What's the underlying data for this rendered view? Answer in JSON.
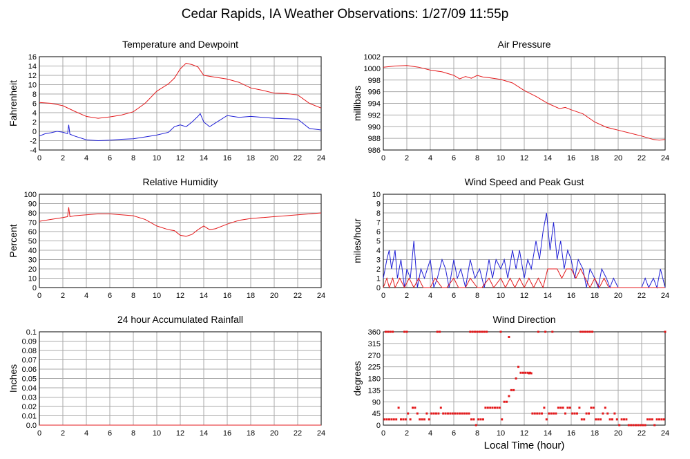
{
  "page_title": "Cedar Rapids, IA Weather Observations: 1/27/09 11:55p",
  "common_xlabel": "Local Time (hour)",
  "colors": {
    "red": "#e41a1c",
    "blue": "#1f1fd6",
    "grid": "#aaaaaa"
  },
  "chart_data": [
    {
      "id": "temp",
      "type": "line",
      "title": "Temperature and Dewpoint",
      "ylabel": "Fahrenheit",
      "xlim": [
        0,
        24
      ],
      "xticks": [
        "0",
        "2",
        "4",
        "6",
        "8",
        "10",
        "12",
        "14",
        "16",
        "18",
        "20",
        "22",
        "24"
      ],
      "ylim": [
        -4,
        16
      ],
      "yticks": [
        "-4",
        "-2",
        "0",
        "2",
        "4",
        "6",
        "8",
        "10",
        "12",
        "14",
        "16"
      ],
      "grid": true,
      "series": [
        {
          "color": "#e41a1c",
          "x": [
            0,
            1,
            2,
            3,
            4,
            5,
            6,
            7,
            8,
            9,
            10,
            11,
            11.5,
            12,
            12.5,
            13,
            13.5,
            14,
            15,
            16,
            17,
            18,
            19,
            20,
            21,
            22,
            23,
            24
          ],
          "y": [
            6.2,
            6.0,
            5.5,
            4.3,
            3.2,
            2.8,
            3.1,
            3.5,
            4.2,
            6.0,
            8.6,
            10.2,
            11.4,
            13.4,
            14.6,
            14.3,
            13.8,
            12.0,
            11.6,
            11.2,
            10.5,
            9.3,
            8.8,
            8.2,
            8.1,
            7.8,
            6.0,
            5.0
          ]
        },
        {
          "color": "#1f1fd6",
          "x": [
            0,
            0.5,
            1,
            1.5,
            2,
            2.4,
            2.5,
            2.6,
            3,
            4,
            5,
            6,
            7,
            8,
            9,
            10,
            11,
            11.5,
            12,
            12.5,
            13,
            13.5,
            13.7,
            14,
            14.5,
            15,
            16,
            17,
            18,
            19,
            20,
            21,
            22,
            23,
            24
          ],
          "y": [
            -1.0,
            -0.5,
            -0.3,
            0.0,
            -0.2,
            -0.5,
            1.4,
            -0.6,
            -1.0,
            -1.8,
            -2.0,
            -1.9,
            -1.7,
            -1.6,
            -1.2,
            -0.8,
            -0.2,
            1.0,
            1.4,
            1.0,
            2.0,
            3.2,
            3.8,
            2.0,
            1.0,
            1.8,
            3.4,
            3.0,
            3.2,
            3.0,
            2.8,
            2.7,
            2.6,
            0.6,
            0.3
          ]
        }
      ]
    },
    {
      "id": "pressure",
      "type": "line",
      "title": "Air Pressure",
      "ylabel": "millibars",
      "xlim": [
        0,
        24
      ],
      "xticks": [
        "0",
        "2",
        "4",
        "6",
        "8",
        "10",
        "12",
        "14",
        "16",
        "18",
        "20",
        "22",
        "24"
      ],
      "ylim": [
        986,
        1002
      ],
      "yticks": [
        "986",
        "988",
        "990",
        "992",
        "994",
        "996",
        "998",
        "1000",
        "1002"
      ],
      "grid": true,
      "series": [
        {
          "color": "#e41a1c",
          "x": [
            0,
            1,
            2,
            3,
            4,
            5,
            6,
            6.5,
            7,
            7.5,
            8,
            8.5,
            9,
            10,
            11,
            12,
            13,
            14,
            15,
            15.5,
            16,
            17,
            18,
            19,
            20,
            21,
            22,
            23,
            23.5,
            24
          ],
          "y": [
            1000.2,
            1000.4,
            1000.5,
            1000.2,
            999.7,
            999.4,
            998.8,
            998.2,
            998.6,
            998.3,
            998.8,
            998.5,
            998.4,
            998.1,
            997.5,
            996.2,
            995.2,
            994.0,
            993.1,
            993.3,
            992.9,
            992.2,
            990.8,
            989.9,
            989.4,
            988.9,
            988.4,
            987.8,
            987.7,
            987.8
          ]
        }
      ]
    },
    {
      "id": "humidity",
      "type": "line",
      "title": "Relative Humidity",
      "ylabel": "Percent",
      "xlim": [
        0,
        24
      ],
      "xticks": [
        "0",
        "2",
        "4",
        "6",
        "8",
        "10",
        "12",
        "14",
        "16",
        "18",
        "20",
        "22",
        "24"
      ],
      "ylim": [
        0,
        100
      ],
      "yticks": [
        "0",
        "10",
        "20",
        "30",
        "40",
        "50",
        "60",
        "70",
        "80",
        "90",
        "100"
      ],
      "grid": true,
      "series": [
        {
          "color": "#e41a1c",
          "x": [
            0,
            1,
            2,
            2.4,
            2.5,
            2.6,
            3,
            4,
            5,
            6,
            7,
            8,
            9,
            10,
            11,
            11.5,
            12,
            12.5,
            13,
            13.5,
            14,
            14.5,
            15,
            16,
            17,
            18,
            19,
            20,
            21,
            22,
            23,
            24
          ],
          "y": [
            71,
            73,
            75,
            76,
            86,
            76,
            77,
            78,
            79,
            79,
            78,
            77,
            73,
            66,
            62,
            61,
            56,
            55,
            57,
            62,
            66,
            62,
            63,
            68,
            72,
            74,
            75,
            76,
            77,
            78,
            79,
            80
          ]
        }
      ]
    },
    {
      "id": "wind",
      "type": "line",
      "title": "Wind Speed and Peak Gust",
      "ylabel": "miles/hour",
      "xlim": [
        0,
        24
      ],
      "xticks": [
        "0",
        "2",
        "4",
        "6",
        "8",
        "10",
        "12",
        "14",
        "16",
        "18",
        "20",
        "22",
        "24"
      ],
      "ylim": [
        0,
        10
      ],
      "yticks": [
        "0",
        "1",
        "2",
        "3",
        "4",
        "5",
        "6",
        "7",
        "8",
        "9",
        "10"
      ],
      "grid": true,
      "series": [
        {
          "color": "#1f1fd6",
          "x": [
            0,
            0.3,
            0.5,
            0.7,
            1,
            1.2,
            1.5,
            1.8,
            2,
            2.3,
            2.6,
            2.9,
            3.2,
            3.5,
            4,
            4.3,
            4.6,
            5,
            5.3,
            5.6,
            6,
            6.3,
            6.6,
            7,
            7.4,
            7.8,
            8.2,
            8.6,
            9,
            9.3,
            9.6,
            10,
            10.3,
            10.6,
            11,
            11.3,
            11.6,
            12,
            12.3,
            12.6,
            13,
            13.3,
            13.6,
            13.9,
            14.2,
            14.5,
            14.8,
            15.1,
            15.4,
            15.7,
            16,
            16.3,
            16.6,
            17,
            17.3,
            17.6,
            18,
            18.3,
            18.6,
            19,
            19.3,
            19.6,
            20,
            20.3,
            20.6,
            21,
            21.5,
            22,
            22.3,
            22.6,
            23,
            23.3,
            23.6,
            24
          ],
          "y": [
            1,
            3,
            4,
            2,
            4,
            1,
            3,
            0,
            2,
            1,
            5,
            0,
            2,
            1,
            3,
            0,
            1,
            3,
            2,
            0,
            3,
            1,
            2,
            0,
            3,
            1,
            2,
            0,
            3,
            1,
            3,
            2,
            3,
            1,
            4,
            2,
            4,
            1,
            3,
            2,
            5,
            3,
            6,
            8,
            4,
            7,
            3,
            5,
            2,
            4,
            3,
            1,
            3,
            2,
            0,
            2,
            1,
            0,
            2,
            1,
            0,
            1,
            0,
            0,
            0,
            0,
            0,
            0,
            1,
            0,
            1,
            0,
            2,
            0
          ]
        },
        {
          "color": "#e41a1c",
          "x": [
            0,
            0.3,
            0.5,
            0.8,
            1,
            1.4,
            1.8,
            2.2,
            2.6,
            3,
            3.4,
            4,
            4.4,
            5,
            5.4,
            6,
            6.4,
            7,
            7.4,
            8,
            8.4,
            9,
            9.4,
            10,
            10.4,
            10.8,
            11.2,
            11.6,
            12,
            12.4,
            12.8,
            13.2,
            13.6,
            14,
            14.4,
            14.8,
            15.2,
            15.6,
            16,
            16.4,
            16.8,
            17.2,
            17.6,
            18,
            18.4,
            18.8,
            19.2,
            19.6,
            20,
            21,
            22,
            23,
            24
          ],
          "y": [
            0,
            1,
            0,
            1,
            0,
            1,
            0,
            1,
            0,
            1,
            0,
            0,
            1,
            0,
            0,
            1,
            0,
            0,
            1,
            0,
            0,
            1,
            0,
            1,
            0,
            1,
            0,
            1,
            0,
            1,
            0,
            1,
            0,
            2,
            2,
            2,
            1,
            2,
            2,
            1,
            2,
            1,
            0,
            1,
            0,
            1,
            0,
            0,
            0,
            0,
            0,
            0,
            0
          ]
        }
      ]
    },
    {
      "id": "rain",
      "type": "line",
      "title": "24 hour Accumulated Rainfall",
      "ylabel": "Inches",
      "xlim": [
        0,
        24
      ],
      "xticks": [
        "0",
        "2",
        "4",
        "6",
        "8",
        "10",
        "12",
        "14",
        "16",
        "18",
        "20",
        "22",
        "24"
      ],
      "ylim": [
        0,
        0.1
      ],
      "yticks": [
        "0.0",
        "0.01",
        "0.02",
        "0.03",
        "0.04",
        "0.05",
        "0.06",
        "0.07",
        "0.08",
        "0.09",
        "0.1"
      ],
      "grid": true,
      "series": [
        {
          "color": "#e41a1c",
          "x": [
            0,
            24
          ],
          "y": [
            0,
            0
          ]
        }
      ]
    },
    {
      "id": "direction",
      "type": "scatter",
      "title": "Wind Direction",
      "ylabel": "degrees",
      "xlabel": "Local Time (hour)",
      "xlim": [
        0,
        24
      ],
      "xticks": [
        "0",
        "2",
        "4",
        "6",
        "8",
        "10",
        "12",
        "14",
        "16",
        "18",
        "20",
        "22",
        "24"
      ],
      "ylim": [
        0,
        360
      ],
      "yticks": [
        "0",
        "45",
        "90",
        "135",
        "180",
        "225",
        "270",
        "315",
        "360"
      ],
      "grid": true,
      "series": [
        {
          "color": "#e41a1c",
          "x": [
            0.1,
            0.3,
            0.5,
            0.7,
            0.9,
            1.1,
            1.3,
            1.5,
            1.7,
            1.9,
            2.1,
            2.3,
            2.5,
            2.7,
            2.9,
            3.1,
            3.3,
            3.5,
            3.7,
            3.9,
            4.1,
            4.3,
            4.5,
            4.7,
            4.9,
            5.1,
            5.3,
            5.5,
            5.7,
            5.9,
            6.1,
            6.3,
            6.5,
            6.7,
            6.9,
            7.1,
            7.3,
            7.5,
            7.7,
            7.9,
            8.1,
            8.3,
            8.5,
            8.7,
            8.9,
            9.1,
            9.3,
            9.5,
            9.7,
            9.9,
            10.1,
            10.3,
            10.5,
            10.7,
            10.9,
            11.1,
            11.3,
            11.5,
            11.7,
            11.9,
            12.1,
            12.3,
            12.5,
            12.7,
            12.9,
            13.1,
            13.3,
            13.5,
            13.7,
            13.9,
            14.1,
            14.3,
            14.5,
            14.7,
            14.9,
            15.1,
            15.3,
            15.5,
            15.7,
            15.9,
            16.1,
            16.3,
            16.5,
            16.7,
            16.9,
            17.1,
            17.3,
            17.5,
            17.7,
            17.9,
            18.1,
            18.3,
            18.5,
            18.7,
            18.9,
            19.1,
            19.3,
            19.5,
            19.7,
            19.9,
            20.1,
            20.3,
            20.5,
            20.7,
            20.9,
            21.1,
            21.3,
            21.5,
            21.7,
            21.9,
            22.1,
            22.3,
            22.5,
            22.7,
            22.9,
            23.1,
            23.3,
            23.5,
            23.7,
            23.9,
            0.2,
            0.4,
            0.6,
            0.8,
            1.8,
            2.0,
            4.6,
            4.8,
            7.4,
            7.6,
            7.8,
            8.0,
            8.2,
            8.4,
            8.6,
            8.8,
            10.0,
            13.2,
            13.8,
            14.4,
            16.8,
            17.0,
            17.2,
            17.4,
            17.6,
            17.8,
            12.4,
            12.6,
            10.7,
            24.0
          ],
          "y": [
            22,
            22,
            22,
            22,
            22,
            22,
            67,
            22,
            22,
            22,
            45,
            22,
            67,
            67,
            45,
            22,
            22,
            22,
            45,
            22,
            45,
            45,
            45,
            45,
            67,
            45,
            45,
            45,
            45,
            45,
            45,
            45,
            45,
            45,
            45,
            45,
            45,
            22,
            22,
            0,
            22,
            22,
            22,
            67,
            67,
            67,
            67,
            67,
            67,
            67,
            22,
            90,
            90,
            112,
            135,
            135,
            180,
            225,
            202,
            202,
            202,
            202,
            202,
            45,
            45,
            45,
            45,
            45,
            67,
            22,
            45,
            45,
            45,
            45,
            67,
            67,
            67,
            45,
            67,
            67,
            45,
            45,
            45,
            67,
            22,
            22,
            45,
            45,
            67,
            67,
            22,
            22,
            22,
            45,
            67,
            45,
            22,
            22,
            45,
            22,
            0,
            22,
            22,
            22,
            0,
            0,
            0,
            0,
            0,
            0,
            0,
            0,
            22,
            22,
            22,
            0,
            22,
            22,
            22,
            22,
            360,
            360,
            360,
            360,
            360,
            360,
            360,
            360,
            360,
            360,
            360,
            360,
            360,
            360,
            360,
            360,
            360,
            360,
            360,
            360,
            360,
            360,
            360,
            360,
            360,
            360,
            200,
            200,
            340,
            360
          ]
        }
      ]
    }
  ]
}
